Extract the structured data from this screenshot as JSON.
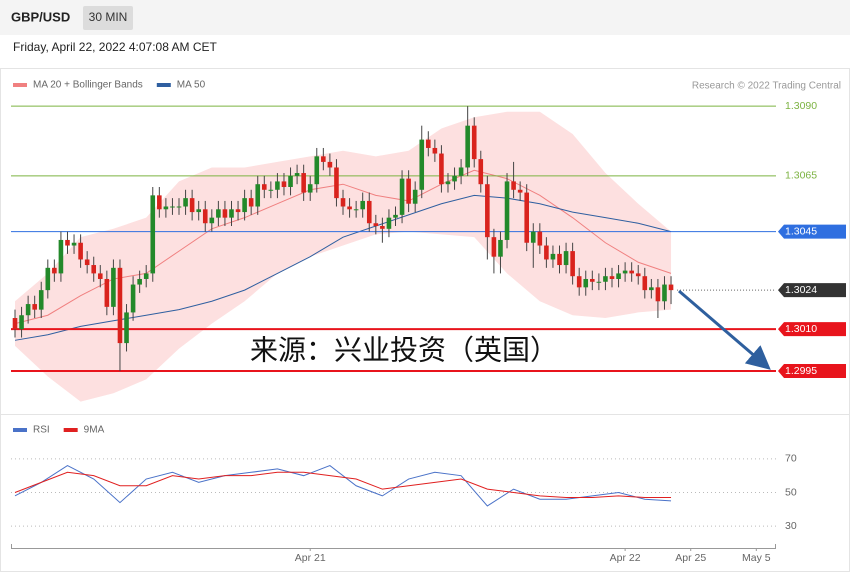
{
  "chart_data": {
    "type": "candlestick",
    "title": "GBP/USD",
    "timeframe": "30 MIN",
    "subtitle": "Friday, April 22, 2022 4:07:08 AM CET",
    "source": "Research © 2022 Trading Central",
    "annotation": "来源：兴业投资（英国）",
    "up_color": "#23892a",
    "down_color": "#d9231d",
    "ylim": [
      1.2981,
      1.3094
    ],
    "xlim": [
      0,
      116
    ],
    "xticks": [
      {
        "value": 45,
        "label": "Apr 21"
      },
      {
        "value": 93,
        "label": "Apr 22"
      },
      {
        "value": 103,
        "label": "Apr 25"
      },
      {
        "value": 113,
        "label": "May 5"
      }
    ],
    "levels": [
      {
        "value": 1.309,
        "label": "1.3090",
        "color": "#7cb342",
        "style": "line",
        "box": false
      },
      {
        "value": 1.3065,
        "label": "1.3065",
        "color": "#7cb342",
        "style": "line",
        "box": false
      },
      {
        "value": 1.3045,
        "label": "1.3045",
        "color": "#2f6fe0",
        "style": "line",
        "box": true
      },
      {
        "value": 1.3024,
        "label": "1.3024",
        "color": "#333333",
        "style": "dotted",
        "box": true
      },
      {
        "value": 1.301,
        "label": "1.3010",
        "color": "#e8141c",
        "style": "thick",
        "box": true
      },
      {
        "value": 1.2995,
        "label": "1.2995",
        "color": "#e8141c",
        "style": "thick",
        "box": true
      }
    ],
    "candles": [
      [
        1.3014,
        1.3017,
        1.3007,
        1.301
      ],
      [
        1.301,
        1.3018,
        1.3007,
        1.3015
      ],
      [
        1.3015,
        1.3022,
        1.3012,
        1.3019
      ],
      [
        1.3019,
        1.3022,
        1.3014,
        1.3017
      ],
      [
        1.3017,
        1.3027,
        1.3014,
        1.3024
      ],
      [
        1.3024,
        1.3035,
        1.3021,
        1.3032
      ],
      [
        1.3032,
        1.3035,
        1.3027,
        1.303
      ],
      [
        1.303,
        1.3045,
        1.3027,
        1.3042
      ],
      [
        1.3042,
        1.3045,
        1.3037,
        1.304
      ],
      [
        1.304,
        1.3044,
        1.3037,
        1.3041
      ],
      [
        1.3041,
        1.3044,
        1.3032,
        1.3035
      ],
      [
        1.3035,
        1.3038,
        1.303,
        1.3033
      ],
      [
        1.3033,
        1.3036,
        1.3027,
        1.303
      ],
      [
        1.303,
        1.3033,
        1.3025,
        1.3028
      ],
      [
        1.3028,
        1.3031,
        1.3015,
        1.3018
      ],
      [
        1.3018,
        1.3035,
        1.3015,
        1.3032
      ],
      [
        1.3032,
        1.3035,
        1.2995,
        1.3005
      ],
      [
        1.3005,
        1.3019,
        1.3002,
        1.3016
      ],
      [
        1.3016,
        1.3029,
        1.3013,
        1.3026
      ],
      [
        1.3026,
        1.3031,
        1.3023,
        1.3028
      ],
      [
        1.3028,
        1.3033,
        1.3025,
        1.303
      ],
      [
        1.303,
        1.3061,
        1.3027,
        1.3058
      ],
      [
        1.3058,
        1.3061,
        1.305,
        1.3053
      ],
      [
        1.3053,
        1.3057,
        1.305,
        1.3054
      ],
      [
        1.3054,
        1.3057,
        1.3051,
        1.3054
      ],
      [
        1.3054,
        1.3057,
        1.3051,
        1.3054
      ],
      [
        1.3054,
        1.306,
        1.3051,
        1.3057
      ],
      [
        1.3057,
        1.306,
        1.3049,
        1.3052
      ],
      [
        1.3052,
        1.3056,
        1.3049,
        1.3053
      ],
      [
        1.3053,
        1.3056,
        1.3045,
        1.3048
      ],
      [
        1.3048,
        1.3053,
        1.3045,
        1.305
      ],
      [
        1.305,
        1.3056,
        1.3047,
        1.3053
      ],
      [
        1.3053,
        1.3056,
        1.3047,
        1.305
      ],
      [
        1.305,
        1.3056,
        1.3047,
        1.3053
      ],
      [
        1.3053,
        1.3056,
        1.3049,
        1.3052
      ],
      [
        1.3052,
        1.306,
        1.3049,
        1.3057
      ],
      [
        1.3057,
        1.306,
        1.3051,
        1.3054
      ],
      [
        1.3054,
        1.3065,
        1.3051,
        1.3062
      ],
      [
        1.3062,
        1.3065,
        1.3057,
        1.306
      ],
      [
        1.306,
        1.3063,
        1.3057,
        1.306
      ],
      [
        1.306,
        1.3066,
        1.3057,
        1.3063
      ],
      [
        1.3063,
        1.3066,
        1.3058,
        1.3061
      ],
      [
        1.3061,
        1.3068,
        1.3058,
        1.3065
      ],
      [
        1.3065,
        1.3069,
        1.3062,
        1.3066
      ],
      [
        1.3066,
        1.3069,
        1.3056,
        1.3059
      ],
      [
        1.3059,
        1.3065,
        1.3056,
        1.3062
      ],
      [
        1.3062,
        1.3075,
        1.3059,
        1.3072
      ],
      [
        1.3072,
        1.3075,
        1.3067,
        1.307
      ],
      [
        1.307,
        1.3073,
        1.3065,
        1.3068
      ],
      [
        1.3068,
        1.3071,
        1.3054,
        1.3057
      ],
      [
        1.3057,
        1.306,
        1.3051,
        1.3054
      ],
      [
        1.3054,
        1.3057,
        1.305,
        1.3053
      ],
      [
        1.3053,
        1.3056,
        1.305,
        1.3053
      ],
      [
        1.3053,
        1.3059,
        1.305,
        1.3056
      ],
      [
        1.3056,
        1.3059,
        1.3045,
        1.3048
      ],
      [
        1.3048,
        1.3051,
        1.3044,
        1.3047
      ],
      [
        1.3047,
        1.305,
        1.3041,
        1.3046
      ],
      [
        1.3046,
        1.3053,
        1.3043,
        1.305
      ],
      [
        1.305,
        1.3054,
        1.3047,
        1.3051
      ],
      [
        1.3051,
        1.3067,
        1.3048,
        1.3064
      ],
      [
        1.3064,
        1.3067,
        1.3052,
        1.3055
      ],
      [
        1.3055,
        1.3063,
        1.3052,
        1.306
      ],
      [
        1.306,
        1.3083,
        1.3057,
        1.3078
      ],
      [
        1.3078,
        1.3081,
        1.3072,
        1.3075
      ],
      [
        1.3075,
        1.3078,
        1.307,
        1.3073
      ],
      [
        1.3073,
        1.3076,
        1.3059,
        1.3062
      ],
      [
        1.3062,
        1.3066,
        1.3059,
        1.3063
      ],
      [
        1.3063,
        1.3068,
        1.306,
        1.3065
      ],
      [
        1.3065,
        1.3071,
        1.3062,
        1.3068
      ],
      [
        1.3068,
        1.309,
        1.3065,
        1.3083
      ],
      [
        1.3083,
        1.3086,
        1.3068,
        1.3071
      ],
      [
        1.3071,
        1.3074,
        1.3059,
        1.3062
      ],
      [
        1.3062,
        1.3065,
        1.3035,
        1.3043
      ],
      [
        1.3043,
        1.3046,
        1.303,
        1.3036
      ],
      [
        1.3036,
        1.3045,
        1.303,
        1.3042
      ],
      [
        1.3042,
        1.3066,
        1.3039,
        1.3063
      ],
      [
        1.3063,
        1.307,
        1.3057,
        1.306
      ],
      [
        1.306,
        1.3063,
        1.3056,
        1.3059
      ],
      [
        1.3059,
        1.3062,
        1.3038,
        1.3041
      ],
      [
        1.3041,
        1.3048,
        1.3032,
        1.3045
      ],
      [
        1.3045,
        1.3048,
        1.3037,
        1.304
      ],
      [
        1.304,
        1.3043,
        1.3032,
        1.3035
      ],
      [
        1.3035,
        1.304,
        1.3032,
        1.3037
      ],
      [
        1.3037,
        1.304,
        1.303,
        1.3033
      ],
      [
        1.3033,
        1.3041,
        1.303,
        1.3038
      ],
      [
        1.3038,
        1.3041,
        1.3026,
        1.3029
      ],
      [
        1.3029,
        1.3032,
        1.3022,
        1.3025
      ],
      [
        1.3025,
        1.3031,
        1.3022,
        1.3028
      ],
      [
        1.3028,
        1.3031,
        1.3024,
        1.3027
      ],
      [
        1.3027,
        1.303,
        1.3024,
        1.3027
      ],
      [
        1.3027,
        1.3032,
        1.3024,
        1.3029
      ],
      [
        1.3029,
        1.3032,
        1.3025,
        1.3028
      ],
      [
        1.3028,
        1.3033,
        1.3025,
        1.303
      ],
      [
        1.303,
        1.3034,
        1.3027,
        1.3031
      ],
      [
        1.3031,
        1.3034,
        1.3027,
        1.303
      ],
      [
        1.303,
        1.3033,
        1.3026,
        1.3029
      ],
      [
        1.3029,
        1.3032,
        1.3021,
        1.3024
      ],
      [
        1.3024,
        1.3028,
        1.3021,
        1.3025
      ],
      [
        1.3025,
        1.3028,
        1.3014,
        1.302
      ],
      [
        1.302,
        1.3029,
        1.3017,
        1.3026
      ],
      [
        1.3026,
        1.3029,
        1.3019,
        1.3024
      ]
    ],
    "overlays": [
      {
        "name": "MA 20 + Bollinger Bands",
        "color": "#f08080",
        "band_color": "#fde0e0",
        "x": [
          0,
          5,
          10,
          15,
          20,
          25,
          30,
          35,
          40,
          45,
          50,
          55,
          60,
          65,
          70,
          75,
          80,
          85,
          90,
          95,
          100
        ],
        "values": [
          1.3012,
          1.3015,
          1.3022,
          1.3028,
          1.303,
          1.3038,
          1.3046,
          1.305,
          1.3055,
          1.306,
          1.3062,
          1.3058,
          1.3056,
          1.3062,
          1.3067,
          1.3064,
          1.3058,
          1.305,
          1.3041,
          1.3034,
          1.303
        ],
        "upper": [
          1.302,
          1.303,
          1.3043,
          1.3046,
          1.305,
          1.3063,
          1.3068,
          1.3068,
          1.307,
          1.3072,
          1.3074,
          1.3072,
          1.3074,
          1.3082,
          1.3086,
          1.3088,
          1.3088,
          1.308,
          1.3066,
          1.3055,
          1.3045
        ],
        "lower": [
          1.3004,
          1.2993,
          1.2984,
          1.2987,
          1.2992,
          1.3003,
          1.3012,
          1.302,
          1.303,
          1.3036,
          1.304,
          1.3044,
          1.3045,
          1.3044,
          1.3043,
          1.303,
          1.302,
          1.3015,
          1.3014,
          1.3016,
          1.3017
        ]
      },
      {
        "name": "MA 50",
        "color": "#2f5fa0",
        "x": [
          0,
          5,
          10,
          15,
          20,
          25,
          30,
          35,
          40,
          45,
          50,
          55,
          60,
          65,
          70,
          75,
          80,
          85,
          90,
          95,
          100
        ],
        "values": [
          1.3006,
          1.3008,
          1.3011,
          1.3013,
          1.3015,
          1.3017,
          1.302,
          1.3024,
          1.303,
          1.3036,
          1.3043,
          1.3047,
          1.3051,
          1.3055,
          1.3058,
          1.3057,
          1.3055,
          1.3052,
          1.305,
          1.3048,
          1.3045
        ]
      }
    ],
    "rsi": {
      "ylim": [
        20,
        80
      ],
      "yticks": [
        30,
        50,
        70
      ],
      "series": [
        {
          "name": "RSI",
          "color": "#4a72c8",
          "x": [
            0,
            4,
            8,
            12,
            16,
            20,
            24,
            28,
            32,
            36,
            40,
            44,
            48,
            52,
            56,
            60,
            64,
            68,
            72,
            76,
            80,
            84,
            88,
            92,
            96,
            100
          ],
          "values": [
            48,
            56,
            66,
            58,
            44,
            58,
            62,
            56,
            60,
            62,
            64,
            60,
            66,
            54,
            48,
            58,
            62,
            60,
            42,
            52,
            46,
            46,
            48,
            50,
            46,
            45
          ]
        },
        {
          "name": "9MA",
          "color": "#e02020",
          "x": [
            0,
            4,
            8,
            12,
            16,
            20,
            24,
            28,
            32,
            36,
            40,
            44,
            48,
            52,
            56,
            60,
            64,
            68,
            72,
            76,
            80,
            84,
            88,
            92,
            96,
            100
          ],
          "values": [
            50,
            56,
            62,
            60,
            54,
            54,
            60,
            58,
            60,
            60,
            62,
            62,
            60,
            58,
            52,
            54,
            56,
            58,
            52,
            50,
            48,
            47,
            47,
            48,
            47,
            47
          ]
        }
      ]
    }
  }
}
